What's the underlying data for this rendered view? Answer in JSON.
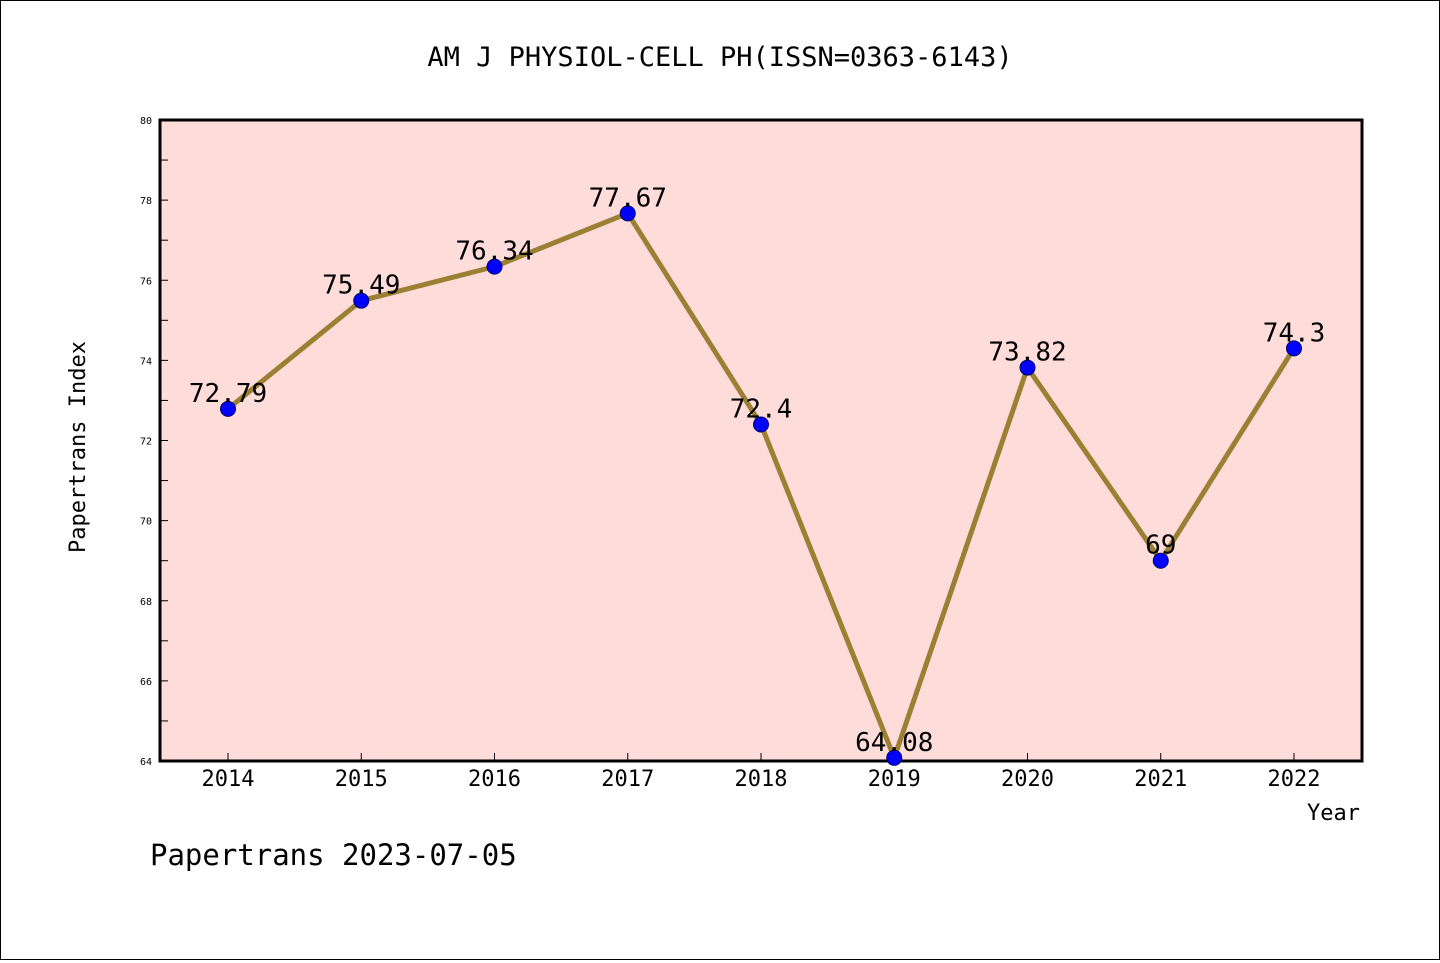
{
  "chart_data": {
    "type": "line",
    "title": "AM J PHYSIOL-CELL PH(ISSN=0363-6143)",
    "xlabel": "Year",
    "ylabel": "Papertrans Index",
    "categories": [
      "2014",
      "2015",
      "2016",
      "2017",
      "2018",
      "2019",
      "2020",
      "2021",
      "2022"
    ],
    "values": [
      72.79,
      75.49,
      76.34,
      77.67,
      72.4,
      64.08,
      73.82,
      69,
      74.3
    ],
    "data_labels": [
      "72.79",
      "75.49",
      "76.34",
      "77.67",
      "72.4",
      "64.08",
      "73.82",
      "69",
      "74.3"
    ],
    "ylim": [
      64,
      80
    ],
    "yticks": [
      "64",
      "66",
      "68",
      "70",
      "72",
      "74",
      "76",
      "78",
      "80"
    ],
    "grid": false,
    "legend": "none",
    "colors": {
      "plot_background": "#fddcda",
      "line": "#9b8034",
      "marker": "#0000ff",
      "axis": "#000000"
    }
  },
  "footer": "Papertrans 2023-07-05"
}
